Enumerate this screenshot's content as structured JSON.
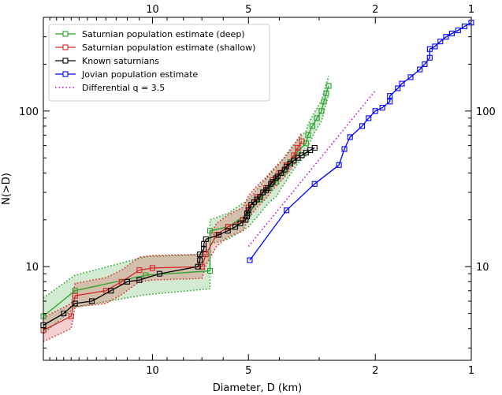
{
  "chart_data": {
    "type": "line",
    "xlabel": "Diameter, D (km)",
    "ylabel": "N(>D)",
    "x_scale": "log-reversed",
    "y_scale": "log",
    "xlim": [
      22,
      1
    ],
    "ylim": [
      2.5,
      400
    ],
    "x_ticks": [
      {
        "value": 10,
        "label": "10"
      },
      {
        "value": 5,
        "label": "5"
      },
      {
        "value": 2,
        "label": "2"
      },
      {
        "value": 1,
        "label": "1"
      }
    ],
    "y_ticks": [
      {
        "value": 10,
        "label": "10"
      },
      {
        "value": 100,
        "label": "100"
      }
    ],
    "grid": false,
    "legend_position": "top-left",
    "series": [
      {
        "name": "Saturnian population estimate (deep)",
        "color": "#2ca02c",
        "marker": "square",
        "line": "solid",
        "points": [
          [
            22,
            4.8
          ],
          [
            17.5,
            7
          ],
          [
            10.5,
            8.8
          ],
          [
            6.6,
            9.4
          ],
          [
            6.6,
            17
          ],
          [
            5.8,
            18
          ],
          [
            5,
            22
          ],
          [
            4.6,
            27
          ],
          [
            4.3,
            32
          ],
          [
            4.1,
            35
          ],
          [
            3.9,
            40
          ],
          [
            3.7,
            47
          ],
          [
            3.5,
            55
          ],
          [
            3.3,
            62
          ],
          [
            3.25,
            70
          ],
          [
            3.15,
            80
          ],
          [
            3.05,
            90
          ],
          [
            2.95,
            100
          ],
          [
            2.9,
            115
          ],
          [
            2.85,
            130
          ],
          [
            2.8,
            145
          ]
        ],
        "band": [
          [
            22,
            3.7,
            6.3
          ],
          [
            17.5,
            5.5,
            8.8
          ],
          [
            10.5,
            6.6,
            11.6
          ],
          [
            6.6,
            7.2,
            12
          ],
          [
            6.6,
            14,
            20
          ],
          [
            5.8,
            15,
            22
          ],
          [
            5,
            18,
            27
          ],
          [
            4.6,
            22,
            33
          ],
          [
            4.3,
            26,
            39
          ],
          [
            4.1,
            28,
            43
          ],
          [
            3.9,
            33,
            49
          ],
          [
            3.7,
            39,
            57
          ],
          [
            3.5,
            46,
            66
          ],
          [
            3.3,
            52,
            74
          ],
          [
            3.25,
            59,
            82
          ],
          [
            3.15,
            68,
            93
          ],
          [
            3.05,
            77,
            104
          ],
          [
            2.95,
            86,
            117
          ],
          [
            2.9,
            99,
            133
          ],
          [
            2.85,
            113,
            150
          ],
          [
            2.8,
            127,
            168
          ]
        ]
      },
      {
        "name": "Saturnian population estimate (shallow)",
        "color": "#d62728",
        "marker": "square",
        "line": "solid",
        "points": [
          [
            22,
            3.9
          ],
          [
            18,
            4.8
          ],
          [
            17.5,
            6.5
          ],
          [
            14,
            7
          ],
          [
            12.5,
            8
          ],
          [
            11,
            9.5
          ],
          [
            10,
            9.8
          ],
          [
            7,
            10
          ],
          [
            6.8,
            12
          ],
          [
            6.3,
            16
          ],
          [
            5.8,
            18
          ],
          [
            5.2,
            20
          ],
          [
            5,
            24
          ],
          [
            4.7,
            28
          ],
          [
            4.4,
            32
          ],
          [
            4.2,
            36
          ],
          [
            4,
            40
          ],
          [
            3.8,
            45
          ],
          [
            3.6,
            52
          ],
          [
            3.5,
            58
          ],
          [
            3.4,
            64
          ]
        ],
        "band": [
          [
            22,
            3.3,
            4.7
          ],
          [
            18,
            4,
            5.8
          ],
          [
            17.5,
            5.5,
            7.8
          ],
          [
            14,
            5.8,
            8.5
          ],
          [
            12.5,
            6.6,
            9.5
          ],
          [
            11,
            8,
            11.5
          ],
          [
            10,
            8.2,
            11.8
          ],
          [
            7,
            8.4,
            12
          ],
          [
            6.8,
            10.2,
            14.2
          ],
          [
            6.3,
            13.5,
            19
          ],
          [
            5.8,
            15.5,
            21.5
          ],
          [
            5.2,
            17,
            24
          ],
          [
            5,
            20.5,
            28.5
          ],
          [
            4.7,
            24,
            33
          ],
          [
            4.4,
            27.5,
            37.5
          ],
          [
            4.2,
            31,
            42
          ],
          [
            4,
            34.5,
            46.5
          ],
          [
            3.8,
            39,
            52
          ],
          [
            3.6,
            45,
            60
          ],
          [
            3.5,
            50,
            66
          ],
          [
            3.4,
            56,
            73
          ]
        ]
      },
      {
        "name": "Known saturnians",
        "color": "#000000",
        "marker": "square",
        "line": "solid",
        "points": [
          [
            22,
            4.2
          ],
          [
            19,
            5
          ],
          [
            17.5,
            5.8
          ],
          [
            15.5,
            6
          ],
          [
            13.5,
            7
          ],
          [
            12,
            8
          ],
          [
            11,
            8.2
          ],
          [
            9.5,
            9
          ],
          [
            7.2,
            10
          ],
          [
            7.1,
            11
          ],
          [
            7.1,
            12
          ],
          [
            6.9,
            13
          ],
          [
            6.9,
            14
          ],
          [
            6.8,
            15
          ],
          [
            6.2,
            16
          ],
          [
            5.8,
            17
          ],
          [
            5.5,
            18
          ],
          [
            5.3,
            19
          ],
          [
            5.1,
            20
          ],
          [
            5.05,
            21
          ],
          [
            5.05,
            22
          ],
          [
            5.0,
            23
          ],
          [
            4.9,
            25
          ],
          [
            4.8,
            26
          ],
          [
            4.7,
            27
          ],
          [
            4.6,
            28
          ],
          [
            4.5,
            30
          ],
          [
            4.4,
            31
          ],
          [
            4.35,
            32
          ],
          [
            4.25,
            34
          ],
          [
            4.2,
            35
          ],
          [
            4.1,
            37
          ],
          [
            4.05,
            38
          ],
          [
            3.95,
            40
          ],
          [
            3.85,
            42
          ],
          [
            3.8,
            44
          ],
          [
            3.7,
            46
          ],
          [
            3.6,
            48
          ],
          [
            3.5,
            50
          ],
          [
            3.4,
            52
          ],
          [
            3.3,
            54
          ],
          [
            3.2,
            56
          ],
          [
            3.1,
            58
          ]
        ]
      },
      {
        "name": "Jovian population estimate",
        "color": "#0000ff",
        "marker": "square",
        "line": "solid",
        "points": [
          [
            4.95,
            11
          ],
          [
            3.8,
            23
          ],
          [
            3.1,
            34
          ],
          [
            2.6,
            45
          ],
          [
            2.5,
            57
          ],
          [
            2.4,
            68
          ],
          [
            2.2,
            80
          ],
          [
            2.1,
            90
          ],
          [
            2.0,
            100
          ],
          [
            1.9,
            105
          ],
          [
            1.8,
            115
          ],
          [
            1.8,
            125
          ],
          [
            1.7,
            140
          ],
          [
            1.65,
            150
          ],
          [
            1.55,
            165
          ],
          [
            1.45,
            185
          ],
          [
            1.4,
            200
          ],
          [
            1.35,
            220
          ],
          [
            1.35,
            250
          ],
          [
            1.3,
            260
          ],
          [
            1.25,
            280
          ],
          [
            1.2,
            300
          ],
          [
            1.15,
            315
          ],
          [
            1.1,
            330
          ],
          [
            1.05,
            350
          ],
          [
            1.0,
            370
          ]
        ]
      },
      {
        "name": "Differential q = 3.5",
        "color": "#cc00cc",
        "marker": "none",
        "line": "dotted",
        "points": [
          [
            5.0,
            13.5
          ],
          [
            2.0,
            135
          ]
        ]
      }
    ]
  }
}
